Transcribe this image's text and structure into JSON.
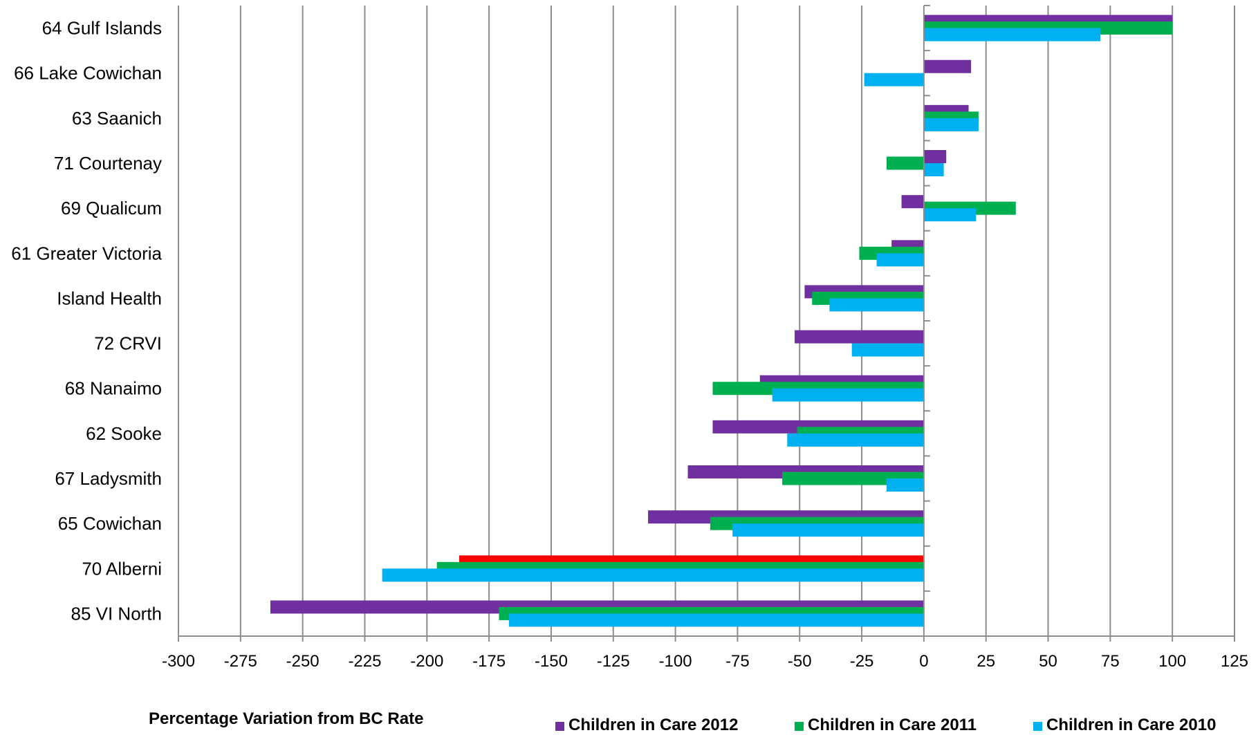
{
  "chart_data": {
    "type": "bar",
    "orientation": "horizontal",
    "categories": [
      "64 Gulf Islands",
      "66 Lake Cowichan",
      "63 Saanich",
      "71 Courtenay",
      "69 Qualicum",
      "61 Greater Victoria",
      "Island Health",
      "72 CRVI",
      "68 Nanaimo",
      "62 Sooke",
      "67 Ladysmith",
      "65 Cowichan",
      "70 Alberni",
      "85 VI North"
    ],
    "series": [
      {
        "name": "Children in Care 2012",
        "color": "#7030a0",
        "values": [
          100,
          19,
          18,
          9,
          -9,
          -13,
          -48,
          -52,
          -66,
          -85,
          -95,
          -111,
          -187,
          -263
        ]
      },
      {
        "name": "Children in Care 2011",
        "color": "#00b050",
        "values": [
          100,
          0,
          22,
          -15,
          37,
          -26,
          -45,
          0,
          -85,
          -51,
          -57,
          -86,
          -196,
          -171
        ]
      },
      {
        "name": "Children in Care 2010",
        "color": "#00b0f0",
        "values": [
          71,
          -24,
          22,
          8,
          21,
          -19,
          -38,
          -29,
          -61,
          -55,
          -15,
          -77,
          -218,
          -167
        ]
      }
    ],
    "highlight": {
      "category": "70 Alberni",
      "series": "Children in Care 2012",
      "color": "#ff0000"
    },
    "xlabel": "Percentage Variation from BC Rate",
    "xlim": [
      -300,
      125
    ],
    "xticks": [
      -300,
      -275,
      -250,
      -225,
      -200,
      -175,
      -150,
      -125,
      -100,
      -75,
      -50,
      -25,
      0,
      25,
      50,
      75,
      100,
      125
    ],
    "grid": true,
    "legend_position": "bottom"
  }
}
